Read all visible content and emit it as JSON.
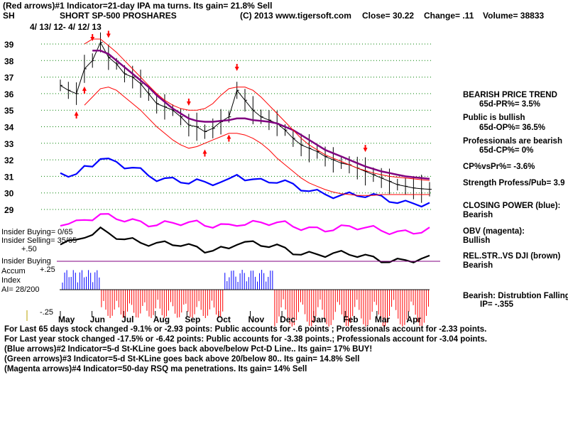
{
  "header": {
    "line1": "(Red arrows)#1 Indicator=21-day IPA ma turns. Its gain= 21.8% Sell",
    "symbol": "SH",
    "name": "SHORT SP-500 PROSHARES",
    "copyright": "(C) 2013 www.tigersoft.com",
    "close": "Close=  30.22",
    "change": "Change= .11",
    "volume": "Volume= 38833",
    "date_range": "4/ 13/ 12- 4/ 12/ 13"
  },
  "colors": {
    "price": "#000000",
    "ma_purple": "#800080",
    "band": "#ff0000",
    "closing_power": "#0000ff",
    "obv": "#ff00ff",
    "relstr": "#000000",
    "grid": "#008000",
    "accum_up": "#0000ff",
    "accum_down": "#ff0000"
  },
  "side_panel": {
    "trend_title": "BEARISH PRICE TREND",
    "pr": "65d-PR%= 3.5%",
    "public_label": "Public is bullish",
    "op": "65d-OP%= 36.5%",
    "prof_label": "Professionals are bearish",
    "cp": "65d-CP%= 0%",
    "cpvspr": "CP%vsPr%= -3.6%",
    "strength": "Strength Profess/Pub= 3.9",
    "cp_title": "CLOSING POWER (blue):",
    "cp_value": "Bearish",
    "obv_title": "OBV (magenta):",
    "obv_value": "Bullish",
    "rel_title": "REL.STR..VS DJI (brown)",
    "rel_value": "Bearish",
    "dist_title": "Bearish: Distrubtion Falling",
    "ip": "IP= -.355"
  },
  "insider": {
    "buying": "Insider Buying= 0/65",
    "selling": "Insider Selling= 35/65",
    "buying_label": "Insider Buying",
    "plus50": "+.50",
    "accum": "Accum",
    "plus25": "+.25",
    "index": "Index",
    "ai": "AI= 28/200",
    "minus25": "-.25"
  },
  "footer": {
    "line1": "For Last 65 days stock changed -9.1% or -2.93 points:  Public accounts for -.6 points ;  Professionals account for -2.33 points.",
    "line2": "For Last year stock changed -17.5% or -6.42 points:  Public accounts for -3.38 points.;  Professionals account for -3.04 points.",
    "line3": "(Blue arrows)#2 Indicator=5-d St-KLine goes back above/below Pct-D Line.. Its gain= 17% BUY!",
    "line4": "(Green arrows)#3 Indicator=5-d St-KLine goes back above 20/below 80.. Its gain= 14.8% Sell",
    "line5": "(Magenta arrows)#4 Indicator=50-day RSQ ma penetrations. Its gain= 14% Sell"
  },
  "chart_data": {
    "type": "line",
    "title": "SHORT SP-500 PROSHARES (SH)",
    "xlabel": "",
    "ylabel": "",
    "x_ticks": [
      "May",
      "Jun",
      "Jul",
      "Aug",
      "Sep",
      "Oct",
      "Nov",
      "Dec",
      "Jan",
      "Feb",
      "Mar",
      "Apr"
    ],
    "y_ticks": [
      39,
      38,
      37,
      36,
      35,
      34,
      33,
      32,
      31,
      30,
      29
    ],
    "ylim": [
      29,
      39
    ],
    "grid": true,
    "x": [
      0,
      0.25,
      0.5,
      0.75,
      1,
      1.25,
      1.5,
      1.75,
      2,
      2.25,
      2.5,
      2.75,
      3,
      3.25,
      3.5,
      3.75,
      4,
      4.25,
      4.5,
      4.75,
      5,
      5.25,
      5.5,
      5.75,
      6,
      6.25,
      6.5,
      6.75,
      7,
      7.25,
      7.5,
      7.75,
      8,
      8.25,
      8.5,
      8.75,
      9,
      9.25,
      9.5,
      9.75,
      10,
      10.25,
      10.5,
      10.75,
      11,
      11.25,
      11.5
    ],
    "series": [
      {
        "name": "Price",
        "values": [
          36.5,
          36.2,
          36.0,
          37.5,
          38.0,
          39.1,
          38.2,
          37.8,
          37.2,
          37.0,
          36.6,
          36.0,
          35.4,
          35.2,
          35.0,
          34.6,
          34.1,
          34.0,
          33.7,
          33.9,
          34.3,
          34.6,
          36.2,
          35.6,
          35.0,
          34.6,
          34.4,
          34.2,
          33.8,
          33.3,
          32.9,
          32.7,
          32.5,
          32.2,
          32.0,
          31.8,
          31.7,
          31.5,
          31.3,
          31.1,
          30.9,
          30.7,
          30.5,
          30.4,
          30.3,
          30.25,
          30.22
        ]
      },
      {
        "name": "50-day MA",
        "values": [
          null,
          null,
          null,
          null,
          38.6,
          38.6,
          38.4,
          38.0,
          37.6,
          37.2,
          36.8,
          36.4,
          35.9,
          35.5,
          35.1,
          34.8,
          34.5,
          34.35,
          34.3,
          34.3,
          34.35,
          34.4,
          34.5,
          34.5,
          34.4,
          34.35,
          34.3,
          34.2,
          34.0,
          33.8,
          33.5,
          33.2,
          32.9,
          32.6,
          32.4,
          32.2,
          32.0,
          31.8,
          31.6,
          31.45,
          31.3,
          31.2,
          31.1,
          31.0,
          30.95,
          30.9,
          30.85
        ]
      },
      {
        "name": "Upper Band",
        "values": [
          null,
          null,
          null,
          39.0,
          39.3,
          39.3,
          38.9,
          38.5,
          38.0,
          37.5,
          37.0,
          36.5,
          36.0,
          35.6,
          35.3,
          35.1,
          35.0,
          35.0,
          35.1,
          35.4,
          35.9,
          36.3,
          36.4,
          36.4,
          36.2,
          35.8,
          35.3,
          34.8,
          34.3,
          33.8,
          33.3,
          32.9,
          32.6,
          32.3,
          32.1,
          31.9,
          31.7,
          31.5,
          31.35,
          31.2,
          31.1,
          31.0,
          30.95,
          30.9,
          30.85,
          30.8,
          30.75
        ]
      },
      {
        "name": "Lower Band",
        "values": [
          null,
          null,
          null,
          35.3,
          35.8,
          36.3,
          36.4,
          36.2,
          35.8,
          35.4,
          35.0,
          34.5,
          34.0,
          33.6,
          33.2,
          32.9,
          32.7,
          32.8,
          33.0,
          33.2,
          33.4,
          33.6,
          33.6,
          33.5,
          33.3,
          33.0,
          32.6,
          32.1,
          31.7,
          31.3,
          30.9,
          30.6,
          30.4,
          30.2,
          30.05,
          29.95,
          29.9,
          29.85,
          29.85,
          29.85,
          29.9,
          29.9,
          29.9,
          29.9,
          29.9,
          29.9,
          29.9
        ]
      }
    ],
    "price_labels": [
      "4/ 13/ 12- 4/ 12/ 13"
    ],
    "annotations": [
      "Insider Buying= 0/65",
      "Insider Selling= 35/65",
      "AI= 28/200"
    ]
  }
}
